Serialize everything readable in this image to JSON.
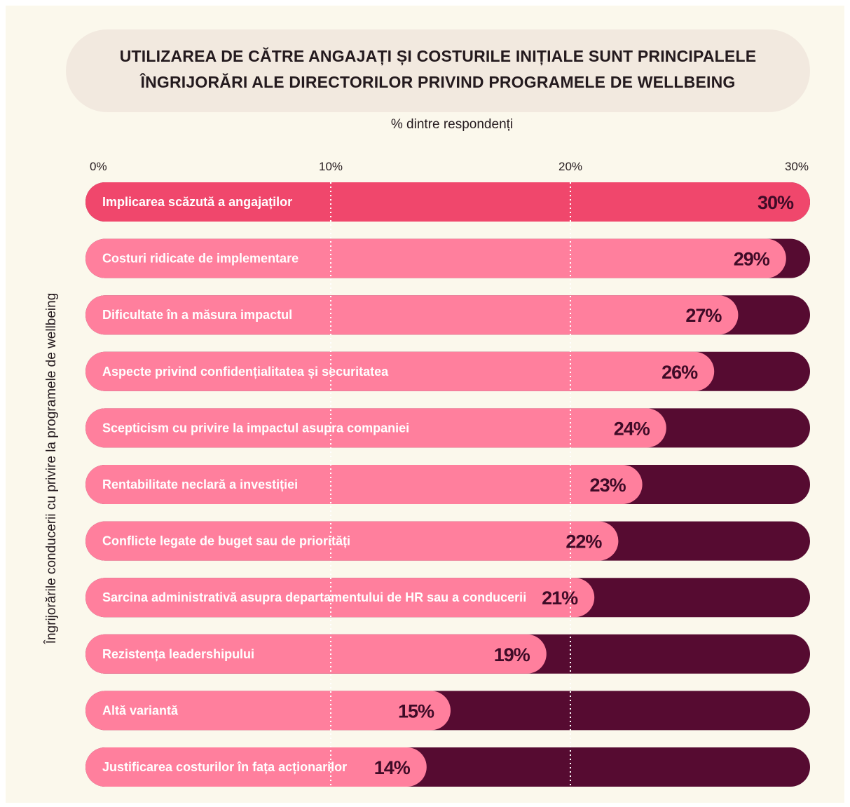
{
  "colors": {
    "track": "#560b31",
    "bar": "#ff7f9d",
    "bar_highlight": "#f0476c",
    "value_text": "#3f0b27"
  },
  "chart_data": {
    "type": "bar",
    "orientation": "horizontal",
    "title": [
      "UTILIZAREA DE CĂTRE ANGAJAȚI ȘI COSTURILE INIȚIALE SUNT PRINCIPALELE",
      "ÎNGRIJORĂRI ALE DIRECTORILOR PRIVIND PROGRAMELE DE WELLBEING"
    ],
    "xlabel": "% dintre respondenți",
    "ylabel": "Îngrijorările conducerii cu privire la programele de wellbeing",
    "xlim": [
      0,
      30
    ],
    "xticks": [
      "0%",
      "10%",
      "20%",
      "30%"
    ],
    "grid": "dotted vertical lines at 10% and 20%",
    "categories": [
      "Implicarea scăzută a angajaților",
      "Costuri ridicate de implementare",
      "Dificultate în a măsura impactul",
      "Aspecte privind confidențialitatea și securitatea",
      "Scepticism cu privire la impactul asupra companiei",
      "Rentabilitate neclară a investiției",
      "Conflicte legate de buget sau de priorități",
      "Sarcina administrativă asupra departamentului de HR sau a conducerii",
      "Rezistența leadershipului",
      "Altă variantă",
      "Justificarea costurilor în fața acționarilor"
    ],
    "values": [
      30,
      29,
      27,
      26,
      24,
      23,
      22,
      21,
      19,
      15,
      14
    ],
    "value_labels": [
      "30%",
      "29%",
      "27%",
      "26%",
      "24%",
      "23%",
      "22%",
      "21%",
      "19%",
      "15%",
      "14%"
    ]
  }
}
